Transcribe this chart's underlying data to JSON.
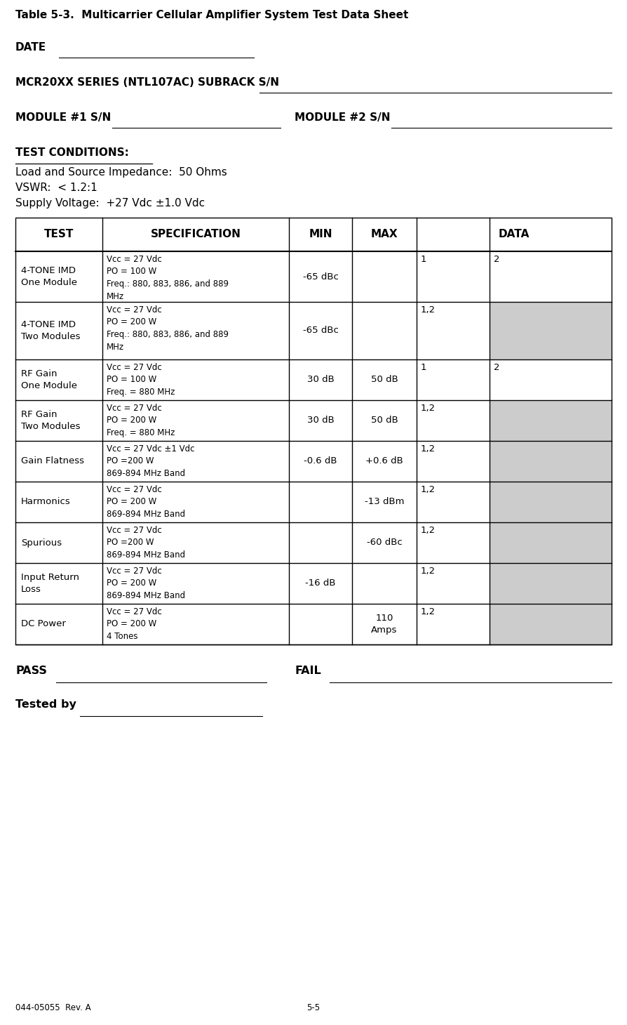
{
  "title": "Table 5-3.  Multicarrier Cellular Amplifier System Test Data Sheet",
  "date_label": "DATE",
  "mcr_label": "MCR20XX SERIES (NTL107AC) SUBRACK S/N",
  "mod1_label": "MODULE #1 S/N",
  "mod2_label": "MODULE #2 S/N",
  "conditions_title": "TEST CONDITIONS:",
  "conditions": [
    "Load and Source Impedance:  50 Ohms",
    "VSWR:  < 1.2:1",
    "Supply Voltage:  +27 Vdc ±1.0 Vdc"
  ],
  "col_headers": [
    "TEST",
    "SPECIFICATION",
    "MIN",
    "MAX",
    "DATA"
  ],
  "rows": [
    {
      "test": "4-TONE IMD\nOne Module",
      "spec": "Vcc = 27 Vdc\nPO = 100 W\nFreq.: 880, 883, 886, and 889\nMHz",
      "min": "-65 dBc",
      "max": "",
      "data1": "1",
      "data2": "2",
      "data2_gray": false
    },
    {
      "test": "4-TONE IMD\nTwo Modules",
      "spec": "Vcc = 27 Vdc\nPO = 200 W\nFreq.: 880, 883, 886, and 889\nMHz",
      "min": "-65 dBc",
      "max": "",
      "data1": "1,2",
      "data2": "",
      "data2_gray": true
    },
    {
      "test": "RF Gain\nOne Module",
      "spec": "Vcc = 27 Vdc\nPO = 100 W\nFreq. = 880 MHz",
      "min": "30 dB",
      "max": "50 dB",
      "data1": "1",
      "data2": "2",
      "data2_gray": false
    },
    {
      "test": "RF Gain\nTwo Modules",
      "spec": "Vcc = 27 Vdc\nPO = 200 W\nFreq. = 880 MHz",
      "min": "30 dB",
      "max": "50 dB",
      "data1": "1,2",
      "data2": "",
      "data2_gray": true
    },
    {
      "test": "Gain Flatness",
      "spec": "Vcc = 27 Vdc ±1 Vdc\nPO =200 W\n869-894 MHz Band",
      "min": "-0.6 dB",
      "max": "+0.6 dB",
      "data1": "1,2",
      "data2": "",
      "data2_gray": true
    },
    {
      "test": "Harmonics",
      "spec": "Vcc = 27 Vdc\nPO = 200 W\n869-894 MHz Band",
      "min": "",
      "max": "-13 dBm",
      "data1": "1,2",
      "data2": "",
      "data2_gray": true
    },
    {
      "test": "Spurious",
      "spec": "Vcc = 27 Vdc\nPO =200 W\n869-894 MHz Band",
      "min": "",
      "max": "-60 dBc",
      "data1": "1,2",
      "data2": "",
      "data2_gray": true
    },
    {
      "test": "Input Return\nLoss",
      "spec": "Vcc = 27 Vdc\nPO = 200 W\n869-894 MHz Band",
      "min": "-16 dB",
      "max": "",
      "data1": "1,2",
      "data2": "",
      "data2_gray": true
    },
    {
      "test": "DC Power",
      "spec": "Vcc = 27 Vdc\nPO = 200 W\n4 Tones",
      "min": "",
      "max": "110\nAmps",
      "data1": "1,2",
      "data2": "",
      "data2_gray": true
    }
  ],
  "pass_label": "PASS",
  "fail_label": "FAIL",
  "tested_label": "Tested by",
  "footer_left": "044-05055  Rev. A",
  "footer_center": "5-5",
  "bg_color": "#ffffff",
  "text_color": "#000000",
  "gray_color": "#cccccc",
  "font_size": 9.5,
  "header_font_size": 10.5,
  "title_font_size": 11
}
